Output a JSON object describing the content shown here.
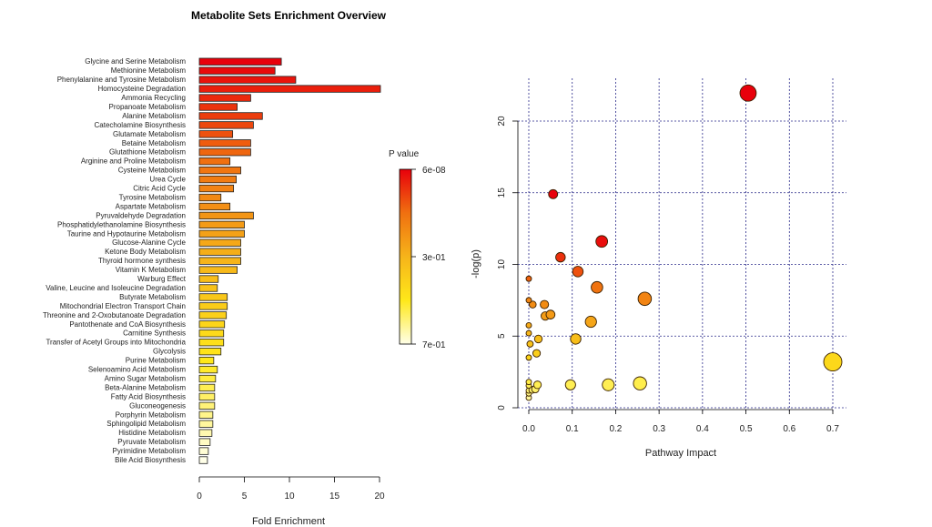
{
  "chart_data": [
    {
      "type": "bar",
      "orientation": "horizontal",
      "title": "Metabolite Sets Enrichment Overview",
      "xlabel": "Fold Enrichment",
      "xlim": [
        0,
        20
      ],
      "xticks": [
        "0",
        "5",
        "10",
        "15",
        "20"
      ],
      "categories": [
        "Glycine and Serine Metabolism",
        "Methionine Metabolism",
        "Phenylalanine and Tyrosine Metabolism",
        "Homocysteine Degradation",
        "Ammonia Recycling",
        "Propanoate Metabolism",
        "Alanine Metabolism",
        "Catecholamine Biosynthesis",
        "Glutamate Metabolism",
        "Betaine Metabolism",
        "Glutathione Metabolism",
        "Arginine and Proline Metabolism",
        "Cysteine Metabolism",
        "Urea Cycle",
        "Citric Acid Cycle",
        "Tyrosine Metabolism",
        "Aspartate Metabolism",
        "Pyruvaldehyde Degradation",
        "Phosphatidylethanolamine Biosynthesis",
        "Taurine and Hypotaurine Metabolism",
        "Glucose-Alanine Cycle",
        "Ketone Body Metabolism",
        "Thyroid hormone synthesis",
        "Vitamin K Metabolism",
        "Warburg Effect",
        "Valine, Leucine and Isoleucine Degradation",
        "Butyrate Metabolism",
        "Mitochondrial Electron Transport Chain",
        "Threonine and 2-Oxobutanoate Degradation",
        "Pantothenate and CoA Biosynthesis",
        "Carnitine Synthesis",
        "Transfer of Acetyl Groups into Mitochondria",
        "Glycolysis",
        "Purine Metabolism",
        "Selenoamino Acid Metabolism",
        "Amino Sugar Metabolism",
        "Beta-Alanine Metabolism",
        "Fatty Acid Biosynthesis",
        "Gluconeogenesis",
        "Porphyrin Metabolism",
        "Sphingolipid Metabolism",
        "Histidine Metabolism",
        "Pyruvate Metabolism",
        "Pyrimidine Metabolism",
        "Bile Acid Biosynthesis"
      ],
      "values": [
        9.1,
        8.4,
        10.7,
        20.1,
        5.7,
        4.2,
        7.0,
        6.0,
        3.7,
        5.7,
        5.7,
        3.4,
        4.6,
        4.1,
        3.8,
        2.4,
        3.4,
        6.0,
        5.0,
        5.0,
        4.6,
        4.6,
        4.6,
        4.2,
        2.1,
        2.0,
        3.1,
        3.1,
        3.0,
        2.8,
        2.7,
        2.7,
        2.4,
        1.6,
        2.0,
        1.8,
        1.7,
        1.7,
        1.7,
        1.5,
        1.5,
        1.4,
        1.2,
        1.0,
        0.9
      ],
      "legend": {
        "title": "P value",
        "labels": [
          "6e-08",
          "3e-01",
          "7e-01"
        ],
        "placement": "right",
        "colors": [
          "#e8000b",
          "#f07010",
          "#f6b41a",
          "#ffe81a",
          "#ffffe8"
        ]
      },
      "grid": false
    },
    {
      "type": "scatter",
      "xlabel": "Pathway Impact",
      "ylabel": "-log(p)",
      "xlim": [
        0,
        0.7
      ],
      "ylim": [
        0,
        20
      ],
      "xticks": [
        "0.0",
        "0.1",
        "0.2",
        "0.3",
        "0.4",
        "0.5",
        "0.6",
        "0.7"
      ],
      "yticks": [
        "0",
        "5",
        "10",
        "15",
        "20"
      ],
      "grid": true,
      "grid_color": "#2a2a8a",
      "points": [
        {
          "x": 0.505,
          "y": 21.95
        },
        {
          "x": 0.056,
          "y": 14.9
        },
        {
          "x": 0.168,
          "y": 11.6
        },
        {
          "x": 0.073,
          "y": 10.5
        },
        {
          "x": 0.113,
          "y": 9.5
        },
        {
          "x": 0.157,
          "y": 8.4
        },
        {
          "x": 0.267,
          "y": 7.6
        },
        {
          "x": 0.0,
          "y": 9.0
        },
        {
          "x": 0.0,
          "y": 7.5
        },
        {
          "x": 0.009,
          "y": 7.2
        },
        {
          "x": 0.036,
          "y": 7.2
        },
        {
          "x": 0.038,
          "y": 6.4
        },
        {
          "x": 0.05,
          "y": 6.5
        },
        {
          "x": 0.143,
          "y": 6.0
        },
        {
          "x": 0.0,
          "y": 5.75
        },
        {
          "x": 0.0,
          "y": 5.2
        },
        {
          "x": 0.022,
          "y": 4.8
        },
        {
          "x": 0.108,
          "y": 4.8
        },
        {
          "x": 0.003,
          "y": 4.45
        },
        {
          "x": 0.018,
          "y": 3.8
        },
        {
          "x": 0.0,
          "y": 3.5
        },
        {
          "x": 0.7,
          "y": 3.2
        },
        {
          "x": 0.256,
          "y": 1.7
        },
        {
          "x": 0.183,
          "y": 1.6
        },
        {
          "x": 0.096,
          "y": 1.6
        },
        {
          "x": 0.02,
          "y": 1.6
        },
        {
          "x": 0.0,
          "y": 1.8
        },
        {
          "x": 0.0,
          "y": 1.55
        },
        {
          "x": 0.015,
          "y": 1.3
        },
        {
          "x": 0.008,
          "y": 1.25
        },
        {
          "x": 0.0,
          "y": 1.2
        },
        {
          "x": 0.0,
          "y": 1.0
        },
        {
          "x": 0.0,
          "y": 0.7
        }
      ]
    }
  ]
}
